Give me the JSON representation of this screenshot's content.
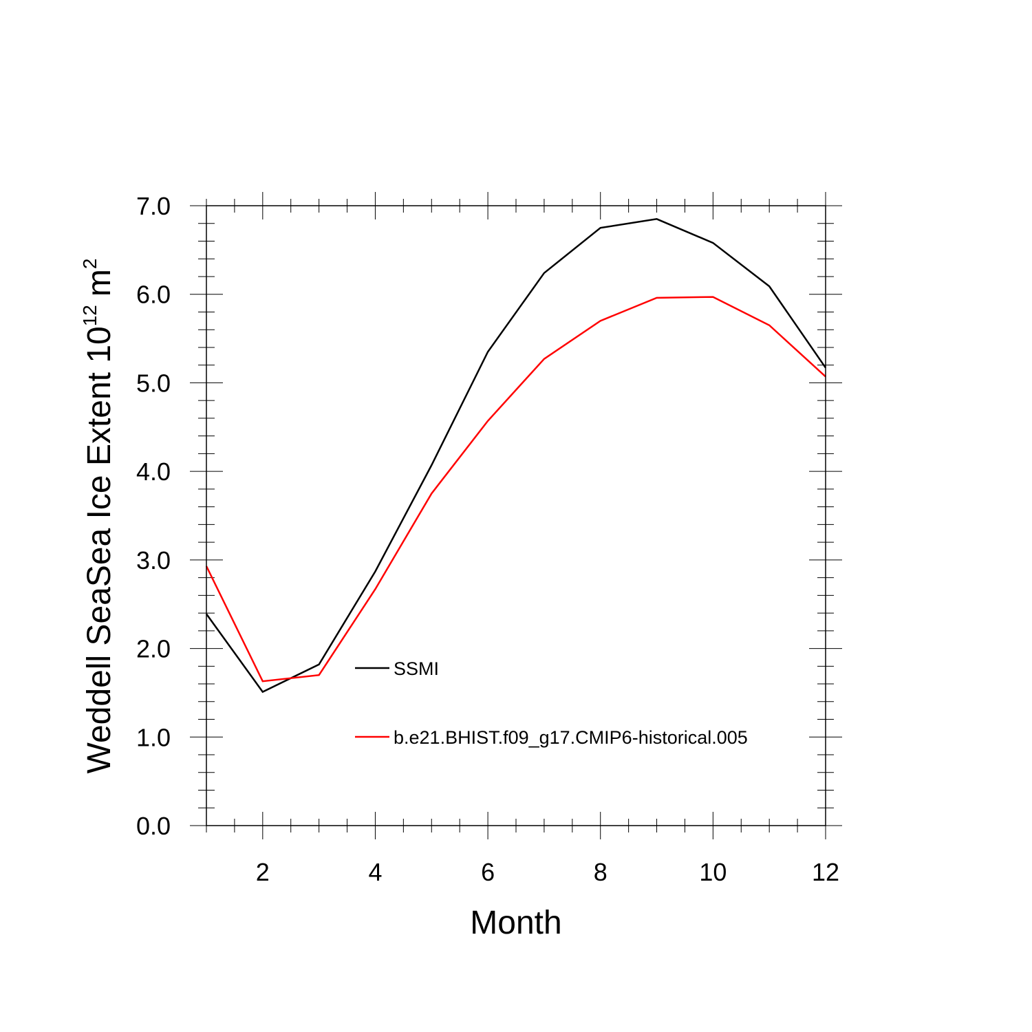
{
  "chart_data": {
    "type": "line",
    "title": "",
    "xlabel": "Month",
    "ylabel": "Weddell SeaSea Ice Extent 10",
    "ylabel_exponent": "12",
    "ylabel_unit": "m",
    "ylabel_unit_exponent": "2",
    "xlim": [
      1,
      12
    ],
    "ylim": [
      0,
      7
    ],
    "x_ticks": [
      2,
      4,
      6,
      8,
      10,
      12
    ],
    "x_tick_labels": [
      "2",
      "4",
      "6",
      "8",
      "10",
      "12"
    ],
    "y_ticks": [
      0,
      1,
      2,
      3,
      4,
      5,
      6,
      7
    ],
    "y_tick_labels": [
      "0.0",
      "1.0",
      "2.0",
      "3.0",
      "4.0",
      "5.0",
      "6.0",
      "7.0"
    ],
    "grid": false,
    "legend_placement": "center-left inside plot",
    "x": [
      1,
      2,
      3,
      4,
      5,
      6,
      7,
      8,
      9,
      10,
      11,
      12
    ],
    "series": [
      {
        "name": "SSMI",
        "color": "#000000",
        "values": [
          2.39,
          1.51,
          1.82,
          2.87,
          4.07,
          5.35,
          6.24,
          6.75,
          6.85,
          6.58,
          6.09,
          5.17
        ]
      },
      {
        "name": "b.e21.BHIST.f09_g17.CMIP6-historical.005",
        "color": "#ff0000",
        "values": [
          2.93,
          1.63,
          1.7,
          2.67,
          3.75,
          4.57,
          5.27,
          5.7,
          5.96,
          5.97,
          5.65,
          5.07
        ]
      }
    ]
  }
}
